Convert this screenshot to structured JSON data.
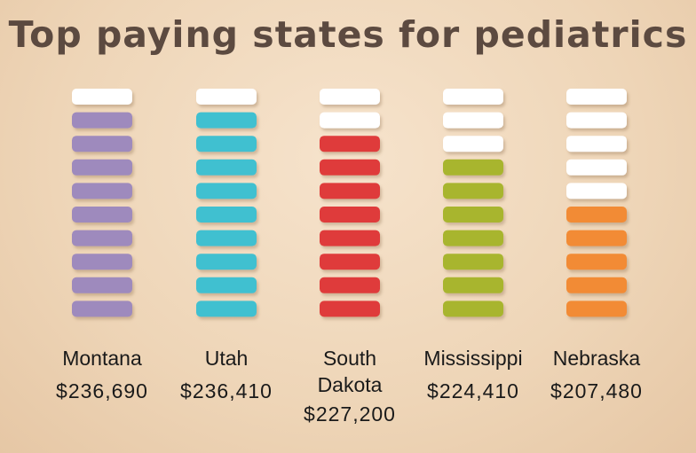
{
  "chart_data": {
    "type": "bar",
    "title": "Top paying states for pediatrics",
    "categories": [
      "Montana",
      "Utah",
      "South\nDakota",
      "Mississippi",
      "Nebraska"
    ],
    "value_labels": [
      "$236,690",
      "$236,410",
      "$227,200",
      "$224,410",
      "$207,480"
    ],
    "values": [
      236690,
      236410,
      227200,
      224410,
      207480
    ],
    "filled_segments": [
      9,
      9,
      8,
      7,
      5
    ],
    "total_segments": 10,
    "colors": [
      "#9e8abd",
      "#40c0d0",
      "#df3b3a",
      "#a8b52e",
      "#f28b34"
    ],
    "empty_color": "#ffffff",
    "xlabel": "",
    "ylabel": ""
  }
}
